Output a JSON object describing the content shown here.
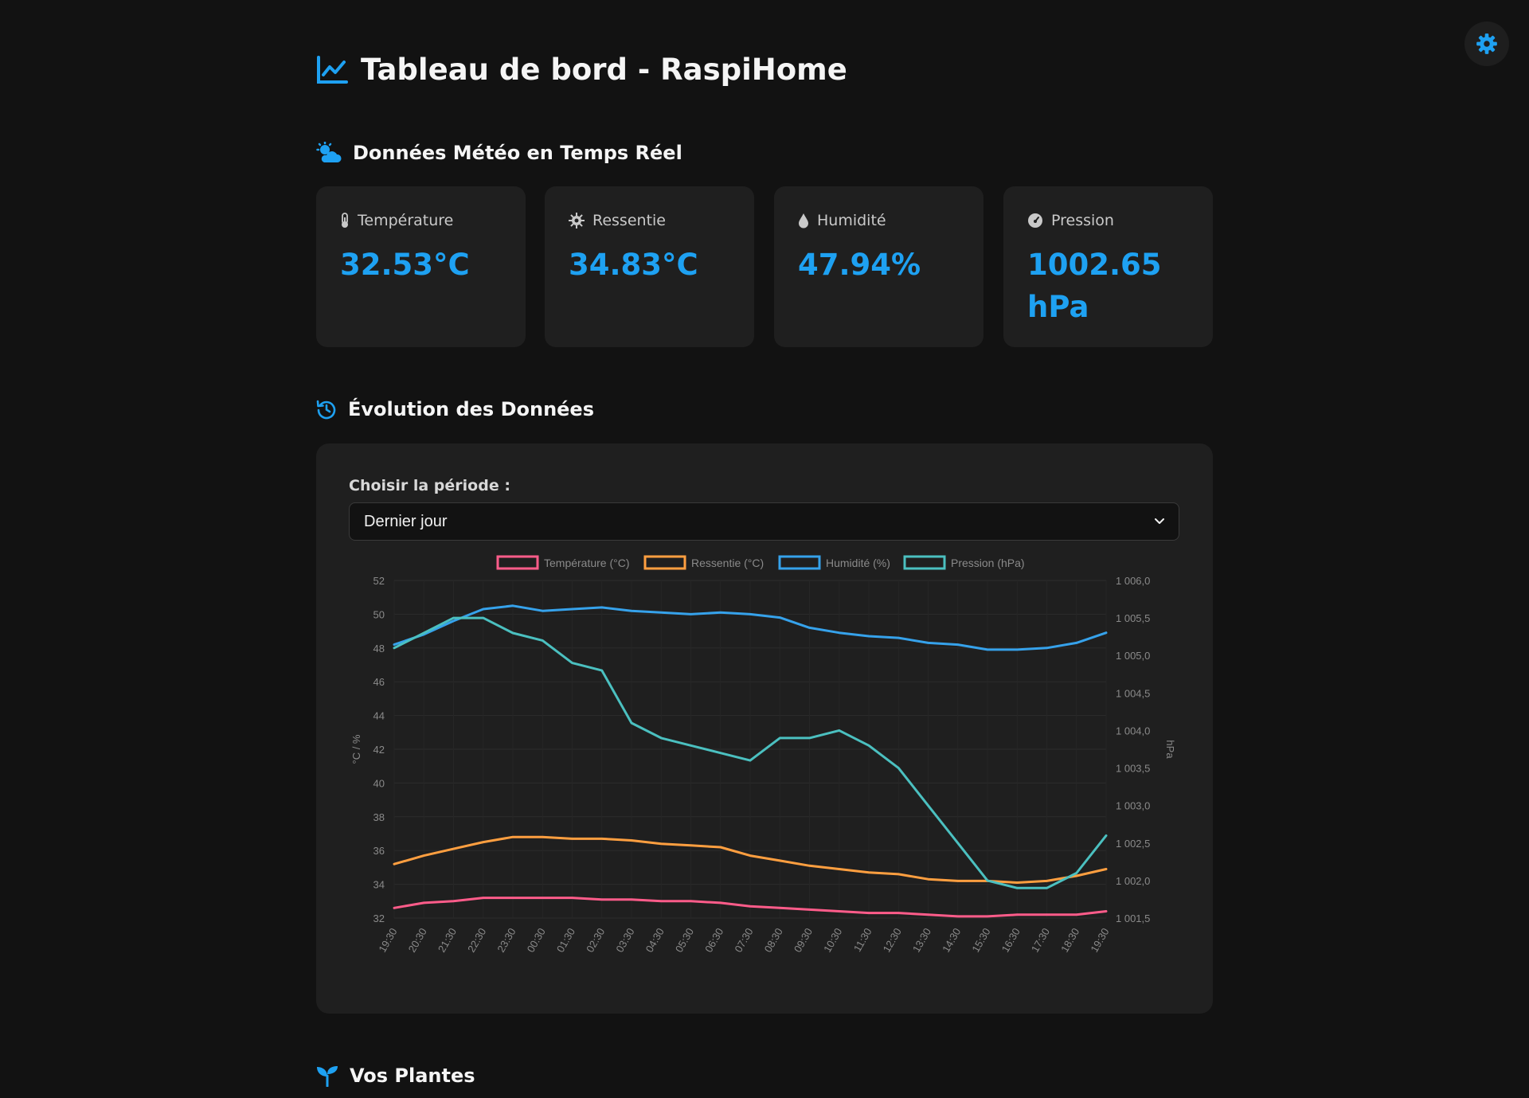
{
  "header": {
    "title": "Tableau de bord - RaspiHome"
  },
  "settings": {
    "icon": "gear-icon"
  },
  "weather_section": {
    "title": "Données Météo en Temps Réel"
  },
  "cards": [
    {
      "icon": "thermometer-icon",
      "label": "Température",
      "value": "32.53°C"
    },
    {
      "icon": "sun-gear-icon",
      "label": "Ressentie",
      "value": "34.83°C"
    },
    {
      "icon": "droplet-icon",
      "label": "Humidité",
      "value": "47.94%"
    },
    {
      "icon": "gauge-icon",
      "label": "Pression",
      "value": "1002.65 hPa"
    }
  ],
  "history_section": {
    "title": "Évolution des Données",
    "period_label": "Choisir la période :",
    "period_value": "Dernier jour"
  },
  "plants_section": {
    "title": "Vos Plantes"
  },
  "colors": {
    "accent": "#1ea1f2",
    "background": "#121212",
    "card": "#1f1f1f"
  },
  "chart_data": {
    "type": "line",
    "legend": [
      "Température (°C)",
      "Ressentie (°C)",
      "Humidité (%)",
      "Pression (hPa)"
    ],
    "legend_position": "top",
    "grid": true,
    "x_ticks": [
      "19:30",
      "20:30",
      "21:30",
      "22:30",
      "23:30",
      "00:30",
      "01:30",
      "02:30",
      "03:30",
      "04:30",
      "05:30",
      "06:30",
      "07:30",
      "08:30",
      "09:30",
      "10:30",
      "11:30",
      "12:30",
      "13:30",
      "14:30",
      "15:30",
      "16:30",
      "17:30",
      "18:30",
      "19:30"
    ],
    "y_left": {
      "label": "°C / %",
      "ylim": [
        32,
        52
      ],
      "ticks": [
        "32",
        "34",
        "36",
        "38",
        "40",
        "42",
        "44",
        "46",
        "48",
        "50",
        "52"
      ]
    },
    "y_right": {
      "label": "hPa",
      "ylim": [
        1001.5,
        1006.0
      ],
      "ticks": [
        "1 001,5",
        "1 002,0",
        "1 002,5",
        "1 003,0",
        "1 003,5",
        "1 004,0",
        "1 004,5",
        "1 005,0",
        "1 005,5",
        "1 006,0"
      ]
    },
    "series": [
      {
        "name": "Température (°C)",
        "color": "#ff5c8a",
        "axis": "left",
        "values": [
          32.6,
          32.9,
          33.0,
          33.2,
          33.2,
          33.2,
          33.2,
          33.1,
          33.1,
          33.0,
          33.0,
          32.9,
          32.7,
          32.6,
          32.5,
          32.4,
          32.3,
          32.3,
          32.2,
          32.1,
          32.1,
          32.2,
          32.2,
          32.2,
          32.4
        ]
      },
      {
        "name": "Ressentie (°C)",
        "color": "#ff9f40",
        "axis": "left",
        "values": [
          35.2,
          35.7,
          36.1,
          36.5,
          36.8,
          36.8,
          36.7,
          36.7,
          36.6,
          36.4,
          36.3,
          36.2,
          35.7,
          35.4,
          35.1,
          34.9,
          34.7,
          34.6,
          34.3,
          34.2,
          34.2,
          34.1,
          34.2,
          34.5,
          34.9
        ]
      },
      {
        "name": "Humidité (%)",
        "color": "#36a2eb",
        "axis": "left",
        "values": [
          48.2,
          48.8,
          49.6,
          50.3,
          50.5,
          50.2,
          50.3,
          50.4,
          50.2,
          50.1,
          50.0,
          50.1,
          50.0,
          49.8,
          49.2,
          48.9,
          48.7,
          48.6,
          48.3,
          48.2,
          47.9,
          47.9,
          48.0,
          48.3,
          48.9
        ]
      },
      {
        "name": "Pression (hPa)",
        "color": "#4bc0c0",
        "axis": "right",
        "values": [
          1005.1,
          1005.3,
          1005.5,
          1005.5,
          1005.3,
          1005.2,
          1004.9,
          1004.8,
          1004.1,
          1003.9,
          1003.8,
          1003.7,
          1003.6,
          1003.9,
          1003.9,
          1004.0,
          1003.8,
          1003.5,
          1003.0,
          1002.5,
          1002.0,
          1001.9,
          1001.9,
          1002.1,
          1002.6
        ]
      }
    ]
  }
}
